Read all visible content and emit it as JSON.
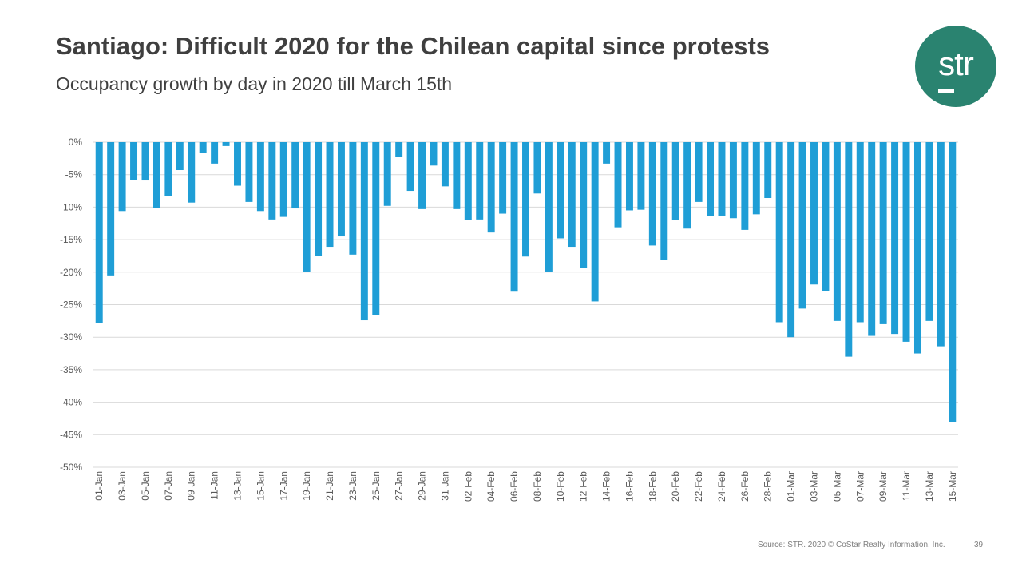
{
  "header": {
    "title": "Santiago: Difficult 2020 for the Chilean capital since protests",
    "subtitle": "Occupancy growth by day in 2020 till March 15th"
  },
  "logo": {
    "text": "str",
    "color": "#2a8370"
  },
  "footer": {
    "source": "Source: STR. 2020 © CoStar Realty Information, Inc.",
    "page_number": "39"
  },
  "chart_data": {
    "type": "bar",
    "title": "",
    "xlabel": "",
    "ylabel": "",
    "ylim": [
      -50,
      0
    ],
    "y_ticks": [
      0,
      -5,
      -10,
      -15,
      -20,
      -25,
      -30,
      -35,
      -40,
      -45,
      -50
    ],
    "y_tick_labels": [
      "0%",
      "-5%",
      "-10%",
      "-15%",
      "-20%",
      "-25%",
      "-30%",
      "-35%",
      "-40%",
      "-45%",
      "-50%"
    ],
    "grid": true,
    "bar_color": "#1f9ed6",
    "categories": [
      "01-Jan",
      "02-Jan",
      "03-Jan",
      "04-Jan",
      "05-Jan",
      "06-Jan",
      "07-Jan",
      "08-Jan",
      "09-Jan",
      "10-Jan",
      "11-Jan",
      "12-Jan",
      "13-Jan",
      "14-Jan",
      "15-Jan",
      "16-Jan",
      "17-Jan",
      "18-Jan",
      "19-Jan",
      "20-Jan",
      "21-Jan",
      "22-Jan",
      "23-Jan",
      "24-Jan",
      "25-Jan",
      "26-Jan",
      "27-Jan",
      "28-Jan",
      "29-Jan",
      "30-Jan",
      "31-Jan",
      "01-Feb",
      "02-Feb",
      "03-Feb",
      "04-Feb",
      "05-Feb",
      "06-Feb",
      "07-Feb",
      "08-Feb",
      "09-Feb",
      "10-Feb",
      "11-Feb",
      "12-Feb",
      "13-Feb",
      "14-Feb",
      "15-Feb",
      "16-Feb",
      "17-Feb",
      "18-Feb",
      "19-Feb",
      "20-Feb",
      "21-Feb",
      "22-Feb",
      "23-Feb",
      "24-Feb",
      "25-Feb",
      "26-Feb",
      "27-Feb",
      "28-Feb",
      "29-Feb",
      "01-Mar",
      "02-Mar",
      "03-Mar",
      "04-Mar",
      "05-Mar",
      "06-Mar",
      "07-Mar",
      "08-Mar",
      "09-Mar",
      "10-Mar",
      "11-Mar",
      "12-Mar",
      "13-Mar",
      "14-Mar",
      "15-Mar"
    ],
    "values": [
      -27.8,
      -20.5,
      -10.6,
      -5.8,
      -5.9,
      -10.1,
      -8.3,
      -4.3,
      -9.3,
      -1.6,
      -3.3,
      -0.6,
      -6.7,
      -9.2,
      -10.6,
      -11.9,
      -11.5,
      -10.2,
      -19.9,
      -17.5,
      -16.1,
      -14.5,
      -17.3,
      -27.4,
      -26.6,
      -9.8,
      -2.3,
      -7.5,
      -10.3,
      -3.6,
      -6.8,
      -10.3,
      -12.0,
      -11.9,
      -13.9,
      -11.0,
      -23.0,
      -17.6,
      -7.9,
      -19.9,
      -14.8,
      -16.1,
      -19.3,
      -24.5,
      -3.3,
      -13.1,
      -10.5,
      -10.4,
      -15.9,
      -18.1,
      -12.0,
      -13.3,
      -9.2,
      -11.4,
      -11.3,
      -11.7,
      -13.5,
      -11.1,
      -8.6,
      -27.7,
      -30.0,
      -25.6,
      -21.9,
      -22.9,
      -27.5,
      -33.0,
      -27.7,
      -29.8,
      -28.0,
      -29.5,
      -30.7,
      -32.5,
      -27.5,
      -31.4,
      -43.1
    ]
  }
}
